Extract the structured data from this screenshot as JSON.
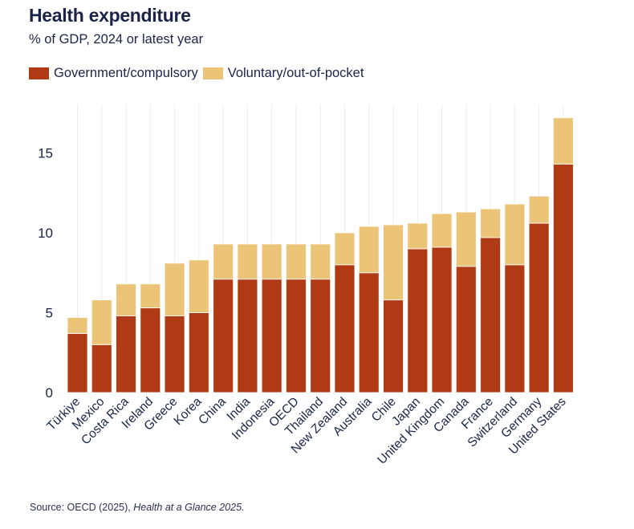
{
  "header": {
    "title": "Health expenditure",
    "subtitle": "% of GDP, 2024 or latest year"
  },
  "legend": [
    {
      "label": "Government/compulsory",
      "color": "#b03a13"
    },
    {
      "label": "Voluntary/out-of-pocket",
      "color": "#ecc477"
    }
  ],
  "footer": {
    "source_prefix": "Source: OECD (2025), ",
    "source_title": "Health at a Glance 2025."
  },
  "chart_data": {
    "type": "bar",
    "stacked": true,
    "title": "Health expenditure",
    "subtitle": "% of GDP, 2024 or latest year",
    "xlabel": "",
    "ylabel": "",
    "ylim": [
      0,
      17.5
    ],
    "yticks": [
      0,
      5,
      10,
      15
    ],
    "grid": "vertical",
    "legend_position": "top-left",
    "categories": [
      "Türkiye",
      "Mexico",
      "Costa Rica",
      "Ireland",
      "Greece",
      "Korea",
      "China",
      "India",
      "Indonesia",
      "OECD",
      "Thailand",
      "New Zealand",
      "Australia",
      "Chile",
      "Japan",
      "United Kingdom",
      "Canada",
      "France",
      "Switzerland",
      "Germany",
      "United States"
    ],
    "series": [
      {
        "name": "Government/compulsory",
        "color": "#b03a13",
        "values": [
          3.7,
          3.0,
          4.8,
          5.3,
          4.8,
          5.0,
          7.1,
          7.1,
          7.1,
          7.1,
          7.1,
          8.0,
          7.5,
          5.8,
          9.0,
          9.1,
          7.9,
          9.7,
          8.0,
          10.6,
          14.3
        ]
      },
      {
        "name": "Voluntary/out-of-pocket",
        "color": "#ecc477",
        "values": [
          1.0,
          2.8,
          2.0,
          1.5,
          3.3,
          3.3,
          2.2,
          2.2,
          2.2,
          2.2,
          2.2,
          2.0,
          2.9,
          4.7,
          1.6,
          2.1,
          3.4,
          1.8,
          3.8,
          1.7,
          2.9
        ]
      }
    ],
    "totals": [
      4.7,
      5.8,
      6.8,
      6.8,
      8.1,
      8.3,
      9.3,
      9.3,
      9.3,
      9.3,
      9.3,
      10.0,
      10.4,
      10.5,
      10.6,
      11.2,
      11.3,
      11.5,
      11.8,
      12.3,
      17.2
    ]
  }
}
